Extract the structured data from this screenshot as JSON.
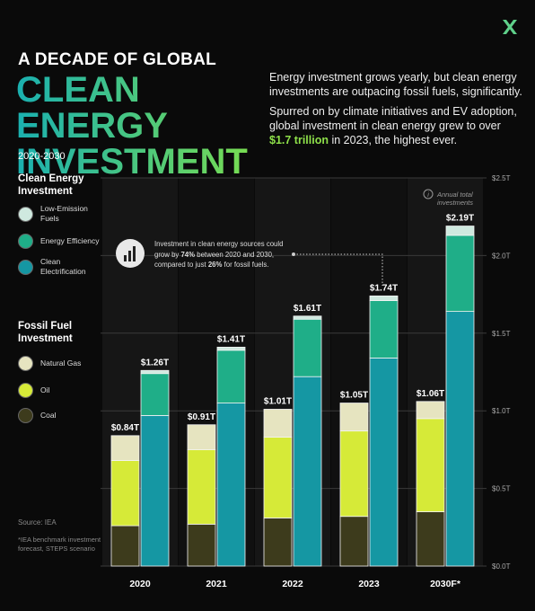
{
  "chart_data": {
    "type": "bar",
    "heading": "A DECADE OF GLOBAL",
    "title": "CLEAN ENERGY INVESTMENT",
    "subtitle": "2020-2030",
    "description": "Energy investment grows yearly, but clean energy investments are outpacing fossil fuels, significantly.",
    "description2": [
      "Spurred on by climate initiatives and EV adoption, global investment in clean energy grew to over ",
      "$1.7 trillion",
      " in 2023, the highest ever."
    ],
    "annotation": [
      "Investment in clean energy sources could grow by ",
      "74%",
      " between 2020 and 2030, compared to just ",
      "26%",
      " for fossil fuels."
    ],
    "total_note": "Annual total investments",
    "source": "Source: IEA",
    "footnote": "*IEA benchmark investment forecast, STEPS scenario",
    "categories": [
      "2020",
      "2021",
      "2022",
      "2023",
      "2030F*"
    ],
    "ylim": [
      0,
      2.5
    ],
    "yticks": [
      {
        "value": 0,
        "label": "$0.0T"
      },
      {
        "value": 0.5,
        "label": "$0.5T"
      },
      {
        "value": 1,
        "label": "$1.0T"
      },
      {
        "value": 1.5,
        "label": "$1.5T"
      },
      {
        "value": 2,
        "label": "$2.0T"
      },
      {
        "value": 2.5,
        "label": "$2.5T"
      }
    ],
    "grid": true,
    "stacks": [
      {
        "name": "Fossil Fuel Investment",
        "series": [
          {
            "name": "Coal",
            "color": "#3d3b1c",
            "values": [
              0.26,
              0.27,
              0.31,
              0.32,
              0.35
            ]
          },
          {
            "name": "Oil",
            "color": "#d6ea38",
            "values": [
              0.42,
              0.48,
              0.52,
              0.55,
              0.6
            ]
          },
          {
            "name": "Natural Gas",
            "color": "#e6e4c0",
            "values": [
              0.16,
              0.16,
              0.18,
              0.18,
              0.11
            ]
          }
        ],
        "totals": [
          0.84,
          0.91,
          1.01,
          1.05,
          1.06
        ],
        "total_labels": [
          "$0.84T",
          "$0.91T",
          "$1.01T",
          "$1.05T",
          "$1.06T"
        ]
      },
      {
        "name": "Clean Energy Investment",
        "series": [
          {
            "name": "Clean Electrification",
            "color": "#1597a3",
            "values": [
              0.97,
              1.05,
              1.22,
              1.34,
              1.64
            ]
          },
          {
            "name": "Energy Efficiency",
            "color": "#1fae88",
            "values": [
              0.27,
              0.34,
              0.37,
              0.37,
              0.49
            ]
          },
          {
            "name": "Low-Emission Fuels",
            "color": "#cfe9df",
            "values": [
              0.02,
              0.02,
              0.02,
              0.03,
              0.06
            ]
          }
        ],
        "totals": [
          1.26,
          1.41,
          1.61,
          1.74,
          2.19
        ],
        "total_labels": [
          "$1.26T",
          "$1.41T",
          "$1.61T",
          "$1.74T",
          "$2.19T"
        ]
      }
    ]
  }
}
